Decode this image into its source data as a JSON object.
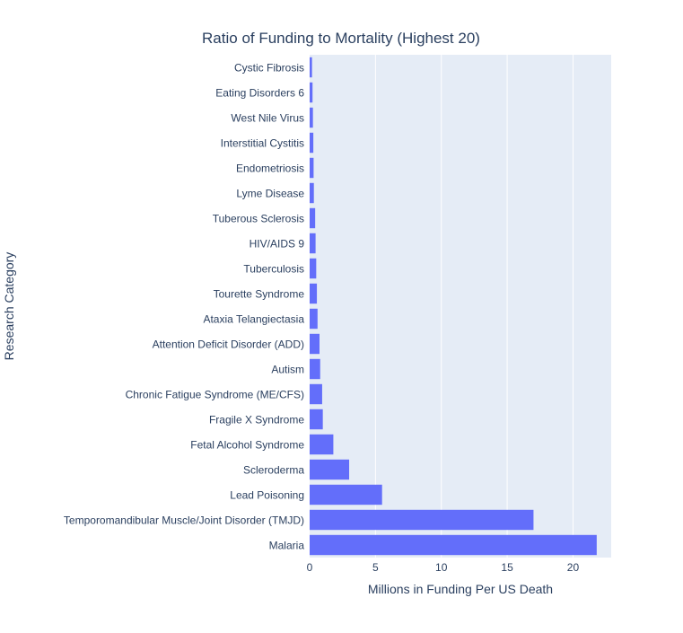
{
  "colors": {
    "plot_bg": "#E5ECF6",
    "grid": "#FFFFFF",
    "bar": "#636EFA",
    "text": "#2A3F5F"
  },
  "chart_data": {
    "type": "bar",
    "orientation": "horizontal",
    "title": "Ratio of Funding to Mortality (Highest 20)",
    "xlabel": "Millions in Funding Per US Death",
    "ylabel": "Research Category",
    "xlim": [
      0,
      22.9
    ],
    "xticks": [
      0,
      5,
      10,
      15,
      20
    ],
    "grid": true,
    "categories": [
      "Cystic Fibrosis",
      "Eating Disorders 6",
      "West Nile Virus",
      "Interstitial Cystitis",
      "Endometriosis",
      "Lyme Disease",
      "Tuberous Sclerosis",
      "HIV/AIDS 9",
      "Tuberculosis",
      "Tourette Syndrome",
      "Ataxia Telangiectasia",
      "Attention Deficit Disorder (ADD)",
      "Autism",
      "Chronic Fatigue Syndrome (ME/CFS)",
      "Fragile X Syndrome",
      "Fetal Alcohol Syndrome",
      "Scleroderma",
      "Lead Poisoning",
      "Temporomandibular Muscle/Joint Disorder (TMJD)",
      "Malaria"
    ],
    "values": [
      0.18,
      0.22,
      0.25,
      0.28,
      0.3,
      0.32,
      0.42,
      0.45,
      0.5,
      0.55,
      0.6,
      0.75,
      0.8,
      0.95,
      1.0,
      1.8,
      3.0,
      5.5,
      17.0,
      21.8
    ]
  }
}
